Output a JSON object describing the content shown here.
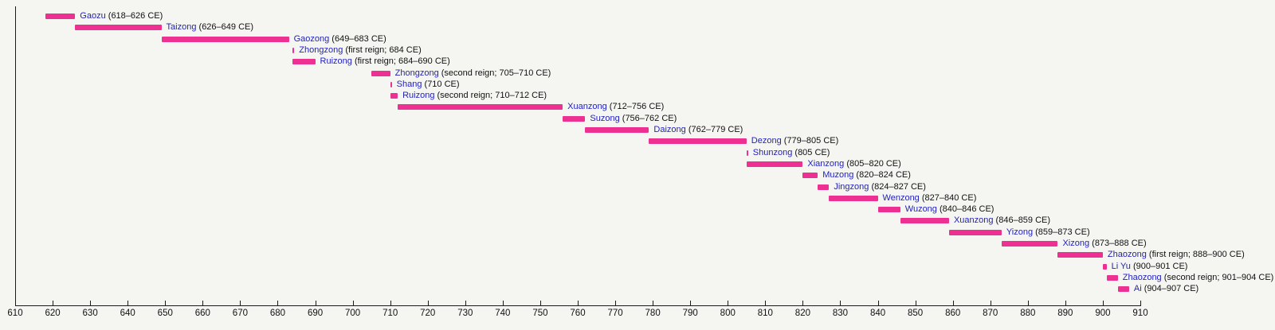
{
  "page": {
    "background": "#f5f5f2"
  },
  "chart_data": {
    "type": "bar",
    "variant": "horizontal-timeline",
    "title": "",
    "xlabel": "",
    "ylabel": "",
    "xlim": [
      610,
      910
    ],
    "xtick_interval": 10,
    "xticks": [
      610,
      620,
      630,
      640,
      650,
      660,
      670,
      680,
      690,
      700,
      710,
      720,
      730,
      740,
      750,
      760,
      770,
      780,
      790,
      800,
      810,
      820,
      830,
      840,
      850,
      860,
      870,
      880,
      890,
      900,
      910
    ],
    "grid": false,
    "legend": false,
    "colors": {
      "bar": "#ED3193",
      "name": "#2222BF",
      "detail": "#111111",
      "axis": "#1a1a1a",
      "background": "#f5f5f2"
    },
    "rows": [
      {
        "name": "Gaozu",
        "detail": "(618–626 CE)",
        "start": 618,
        "end": 626
      },
      {
        "name": "Taizong",
        "detail": "(626–649 CE)",
        "start": 626,
        "end": 649
      },
      {
        "name": "Gaozong",
        "detail": "(649–683 CE)",
        "start": 649,
        "end": 683
      },
      {
        "name": "Zhongzong",
        "detail": "(first reign; 684 CE)",
        "start": 684,
        "end": 684
      },
      {
        "name": "Ruizong",
        "detail": "(first reign; 684–690 CE)",
        "start": 684,
        "end": 690
      },
      {
        "name": "Zhongzong",
        "detail": "(second reign; 705–710 CE)",
        "start": 705,
        "end": 710
      },
      {
        "name": "Shang",
        "detail": "(710 CE)",
        "start": 710,
        "end": 710
      },
      {
        "name": "Ruizong",
        "detail": "(second reign; 710–712 CE)",
        "start": 710,
        "end": 712
      },
      {
        "name": "Xuanzong",
        "detail": "(712–756 CE)",
        "start": 712,
        "end": 756
      },
      {
        "name": "Suzong",
        "detail": "(756–762 CE)",
        "start": 756,
        "end": 762
      },
      {
        "name": "Daizong",
        "detail": "(762–779 CE)",
        "start": 762,
        "end": 779
      },
      {
        "name": "Dezong",
        "detail": "(779–805 CE)",
        "start": 779,
        "end": 805
      },
      {
        "name": "Shunzong",
        "detail": "(805 CE)",
        "start": 805,
        "end": 805
      },
      {
        "name": "Xianzong",
        "detail": "(805–820 CE)",
        "start": 805,
        "end": 820
      },
      {
        "name": "Muzong",
        "detail": "(820–824 CE)",
        "start": 820,
        "end": 824
      },
      {
        "name": "Jingzong",
        "detail": "(824–827 CE)",
        "start": 824,
        "end": 827
      },
      {
        "name": "Wenzong",
        "detail": "(827–840 CE)",
        "start": 827,
        "end": 840
      },
      {
        "name": "Wuzong",
        "detail": "(840–846 CE)",
        "start": 840,
        "end": 846
      },
      {
        "name": "Xuanzong",
        "detail": "(846–859 CE)",
        "start": 846,
        "end": 859
      },
      {
        "name": "Yizong",
        "detail": "(859–873 CE)",
        "start": 859,
        "end": 873
      },
      {
        "name": "Xizong",
        "detail": "(873–888 CE)",
        "start": 873,
        "end": 888
      },
      {
        "name": "Zhaozong",
        "detail": "(first reign; 888–900 CE)",
        "start": 888,
        "end": 900
      },
      {
        "name": "Li Yu",
        "detail": "(900–901 CE)",
        "start": 900,
        "end": 901
      },
      {
        "name": "Zhaozong",
        "detail": "(second reign; 901–904 CE)",
        "start": 901,
        "end": 904
      },
      {
        "name": "Ai",
        "detail": "(904–907 CE)",
        "start": 904,
        "end": 907
      }
    ]
  }
}
